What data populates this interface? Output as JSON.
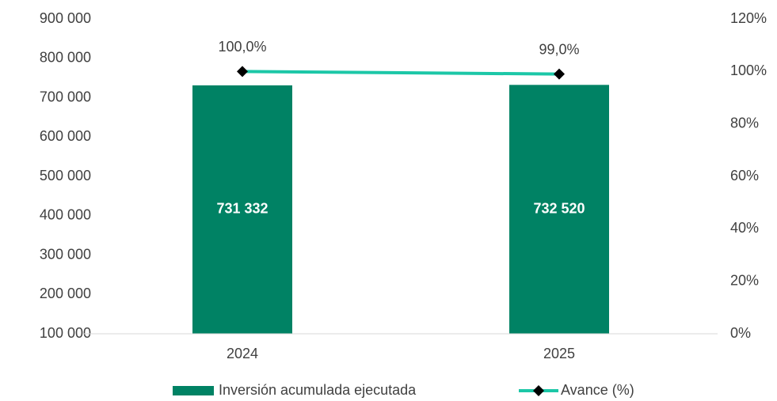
{
  "chart_data": {
    "type": "bar",
    "categories": [
      "2024",
      "2025"
    ],
    "series": [
      {
        "name": "Inversión acumulada ejecutada",
        "type": "bar",
        "color": "#008264",
        "values": [
          731332,
          732520
        ],
        "value_labels": [
          "731 332",
          "732 520"
        ]
      },
      {
        "name": "Avance (%)",
        "type": "line",
        "axis": "y2",
        "color": "#1cc7a7",
        "values": [
          100,
          99
        ],
        "value_labels": [
          "100,0%",
          "99,0%"
        ]
      }
    ],
    "ylim": [
      100000,
      900000
    ],
    "yticks": [
      {
        "value": 100000,
        "label": "100 000"
      },
      {
        "value": 200000,
        "label": "200 000"
      },
      {
        "value": 300000,
        "label": "300 000"
      },
      {
        "value": 400000,
        "label": "400 000"
      },
      {
        "value": 500000,
        "label": "500 000"
      },
      {
        "value": 600000,
        "label": "600 000"
      },
      {
        "value": 700000,
        "label": "700 000"
      },
      {
        "value": 800000,
        "label": "800 000"
      },
      {
        "value": 900000,
        "label": "900 000"
      }
    ],
    "y2lim": [
      0,
      120
    ],
    "y2ticks": [
      {
        "value": 0,
        "label": "0%"
      },
      {
        "value": 20,
        "label": "20%"
      },
      {
        "value": 40,
        "label": "40%"
      },
      {
        "value": 60,
        "label": "60%"
      },
      {
        "value": 80,
        "label": "80%"
      },
      {
        "value": 100,
        "label": "100%"
      },
      {
        "value": 120,
        "label": "120%"
      }
    ],
    "grid": false,
    "legend": "bottom"
  }
}
